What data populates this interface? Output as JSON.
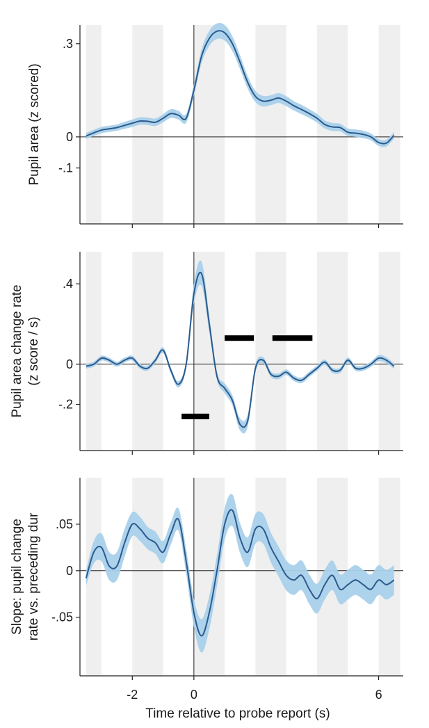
{
  "figure": {
    "xlabel": "Time relative to probe report (s)",
    "x_tick_labels": [
      "-2",
      "0",
      "6"
    ],
    "shading_color": "#efefef",
    "line_color": "#2b5a8c",
    "band_color": "#a9d0ea",
    "significance_bar_color": "#000000"
  },
  "chart_data": [
    {
      "type": "line",
      "id": "pupil-area",
      "ylabel_lines": [
        "Pupil area (z scored)"
      ],
      "xlim": [
        -3.7,
        6.8
      ],
      "ylim": [
        -0.28,
        0.36
      ],
      "y_ticks": [
        0.3,
        0,
        -0.1
      ],
      "y_tick_labels": [
        ".3",
        "0",
        "-.1"
      ],
      "x_ticks": [
        -2,
        0,
        6
      ],
      "shaded_bins": [
        [
          -3.5,
          -3
        ],
        [
          -2,
          -1
        ],
        [
          0,
          1
        ],
        [
          2,
          3
        ],
        [
          4,
          5
        ],
        [
          6,
          6.7
        ]
      ],
      "reference_lines": {
        "x0": true,
        "y0": true
      },
      "series": [
        {
          "x": [
            -3.5,
            -3.25,
            -3,
            -2.75,
            -2.5,
            -2.25,
            -2,
            -1.75,
            -1.5,
            -1.25,
            -1,
            -0.75,
            -0.5,
            -0.25,
            0,
            0.25,
            0.5,
            0.75,
            1,
            1.25,
            1.5,
            1.75,
            2,
            2.25,
            2.5,
            2.75,
            3,
            3.25,
            3.5,
            3.75,
            4,
            4.25,
            4.5,
            4.75,
            5,
            5.25,
            5.5,
            5.75,
            6,
            6.25,
            6.5
          ],
          "y": [
            0.003,
            0.013,
            0.022,
            0.026,
            0.03,
            0.037,
            0.044,
            0.051,
            0.05,
            0.047,
            0.06,
            0.075,
            0.07,
            0.06,
            0.15,
            0.26,
            0.317,
            0.34,
            0.335,
            0.3,
            0.24,
            0.175,
            0.13,
            0.115,
            0.118,
            0.125,
            0.115,
            0.1,
            0.088,
            0.075,
            0.06,
            0.04,
            0.032,
            0.03,
            0.015,
            0.012,
            0.008,
            0.0,
            -0.018,
            -0.02,
            0.005
          ],
          "band": [
            0.01,
            0.01,
            0.01,
            0.01,
            0.01,
            0.011,
            0.012,
            0.012,
            0.012,
            0.012,
            0.013,
            0.014,
            0.014,
            0.014,
            0.018,
            0.022,
            0.024,
            0.025,
            0.025,
            0.024,
            0.022,
            0.02,
            0.018,
            0.017,
            0.016,
            0.016,
            0.016,
            0.015,
            0.015,
            0.014,
            0.014,
            0.013,
            0.013,
            0.012,
            0.012,
            0.012,
            0.012,
            0.011,
            0.011,
            0.011,
            0.011
          ]
        }
      ],
      "significance_bars": []
    },
    {
      "type": "line",
      "id": "pupil-change-rate",
      "ylabel_lines": [
        "Pupil area change rate",
        "(z score / s)"
      ],
      "xlim": [
        -3.7,
        6.8
      ],
      "ylim": [
        -0.43,
        0.56
      ],
      "y_ticks": [
        0.4,
        0,
        -0.2
      ],
      "y_tick_labels": [
        ".4",
        "0",
        "-.2"
      ],
      "x_ticks": [
        -2,
        0,
        6
      ],
      "shaded_bins": [
        [
          -3.5,
          -3
        ],
        [
          -2,
          -1
        ],
        [
          0,
          1
        ],
        [
          2,
          3
        ],
        [
          4,
          5
        ],
        [
          6,
          6.7
        ]
      ],
      "reference_lines": {
        "x0": true,
        "y0": true
      },
      "series": [
        {
          "x": [
            -3.5,
            -3.25,
            -3,
            -2.75,
            -2.5,
            -2.25,
            -2,
            -1.75,
            -1.5,
            -1.25,
            -1,
            -0.75,
            -0.5,
            -0.25,
            0,
            0.25,
            0.5,
            0.75,
            1,
            1.25,
            1.5,
            1.75,
            2,
            2.25,
            2.5,
            2.75,
            3,
            3.25,
            3.5,
            3.75,
            4,
            4.25,
            4.5,
            4.75,
            5,
            5.25,
            5.5,
            5.75,
            6,
            6.25,
            6.5
          ],
          "y": [
            -0.01,
            0.0,
            0.03,
            0.02,
            0.0,
            0.02,
            0.03,
            -0.01,
            -0.02,
            0.02,
            0.07,
            -0.03,
            -0.1,
            0.0,
            0.35,
            0.45,
            0.2,
            -0.06,
            -0.12,
            -0.18,
            -0.3,
            -0.28,
            -0.02,
            0.02,
            -0.05,
            -0.06,
            -0.04,
            -0.07,
            -0.08,
            -0.05,
            -0.02,
            0.01,
            -0.03,
            -0.03,
            0.02,
            -0.02,
            -0.02,
            0.0,
            0.03,
            0.02,
            -0.01
          ],
          "band": [
            0.012,
            0.012,
            0.012,
            0.012,
            0.012,
            0.012,
            0.012,
            0.012,
            0.012,
            0.013,
            0.014,
            0.015,
            0.016,
            0.02,
            0.05,
            0.06,
            0.04,
            0.02,
            0.025,
            0.025,
            0.03,
            0.03,
            0.02,
            0.015,
            0.014,
            0.014,
            0.014,
            0.014,
            0.014,
            0.013,
            0.013,
            0.013,
            0.013,
            0.013,
            0.013,
            0.013,
            0.013,
            0.013,
            0.015,
            0.015,
            0.013
          ]
        }
      ],
      "significance_bars": [
        {
          "x": [
            -0.4,
            0.5
          ],
          "y": -0.26
        },
        {
          "x": [
            1.0,
            1.95
          ],
          "y": 0.13
        },
        {
          "x": [
            2.55,
            3.85
          ],
          "y": 0.13
        }
      ]
    },
    {
      "type": "line",
      "id": "slope",
      "ylabel_lines": [
        "Slope: pupil change",
        "rate  vs. preceding dur"
      ],
      "xlim": [
        -3.7,
        6.8
      ],
      "ylim": [
        -0.113,
        0.1
      ],
      "y_ticks": [
        0.05,
        0,
        -0.05
      ],
      "y_tick_labels": [
        ".05",
        "0",
        "-.05"
      ],
      "x_ticks": [
        -2,
        0,
        6
      ],
      "shaded_bins": [
        [
          -3.5,
          -3
        ],
        [
          -2,
          -1
        ],
        [
          0,
          1
        ],
        [
          2,
          3
        ],
        [
          4,
          5
        ],
        [
          6,
          6.7
        ]
      ],
      "reference_lines": {
        "x0": true,
        "y0": true
      },
      "series": [
        {
          "x": [
            -3.5,
            -3.25,
            -3,
            -2.75,
            -2.5,
            -2.25,
            -2,
            -1.75,
            -1.5,
            -1.25,
            -1,
            -0.75,
            -0.5,
            -0.25,
            0,
            0.25,
            0.5,
            0.75,
            1,
            1.25,
            1.5,
            1.75,
            2,
            2.25,
            2.5,
            2.75,
            3,
            3.25,
            3.5,
            3.75,
            4,
            4.25,
            4.5,
            4.75,
            5,
            5.25,
            5.5,
            5.75,
            6,
            6.25,
            6.5
          ],
          "y": [
            -0.008,
            0.02,
            0.025,
            0.005,
            0.005,
            0.03,
            0.05,
            0.045,
            0.035,
            0.03,
            0.02,
            0.04,
            0.055,
            0.01,
            -0.045,
            -0.07,
            -0.045,
            0.0,
            0.05,
            0.065,
            0.035,
            0.02,
            0.045,
            0.045,
            0.025,
            0.01,
            -0.005,
            -0.01,
            -0.005,
            -0.02,
            -0.03,
            -0.015,
            -0.005,
            -0.02,
            -0.015,
            -0.01,
            -0.015,
            -0.02,
            -0.01,
            -0.015,
            -0.01
          ],
          "band": [
            0.008,
            0.012,
            0.015,
            0.015,
            0.015,
            0.015,
            0.013,
            0.013,
            0.012,
            0.012,
            0.012,
            0.012,
            0.012,
            0.013,
            0.015,
            0.018,
            0.018,
            0.017,
            0.017,
            0.017,
            0.016,
            0.016,
            0.016,
            0.016,
            0.016,
            0.016,
            0.016,
            0.016,
            0.016,
            0.016,
            0.016,
            0.016,
            0.016,
            0.016,
            0.016,
            0.016,
            0.016,
            0.016,
            0.016,
            0.016,
            0.016
          ]
        }
      ],
      "significance_bars": []
    }
  ]
}
